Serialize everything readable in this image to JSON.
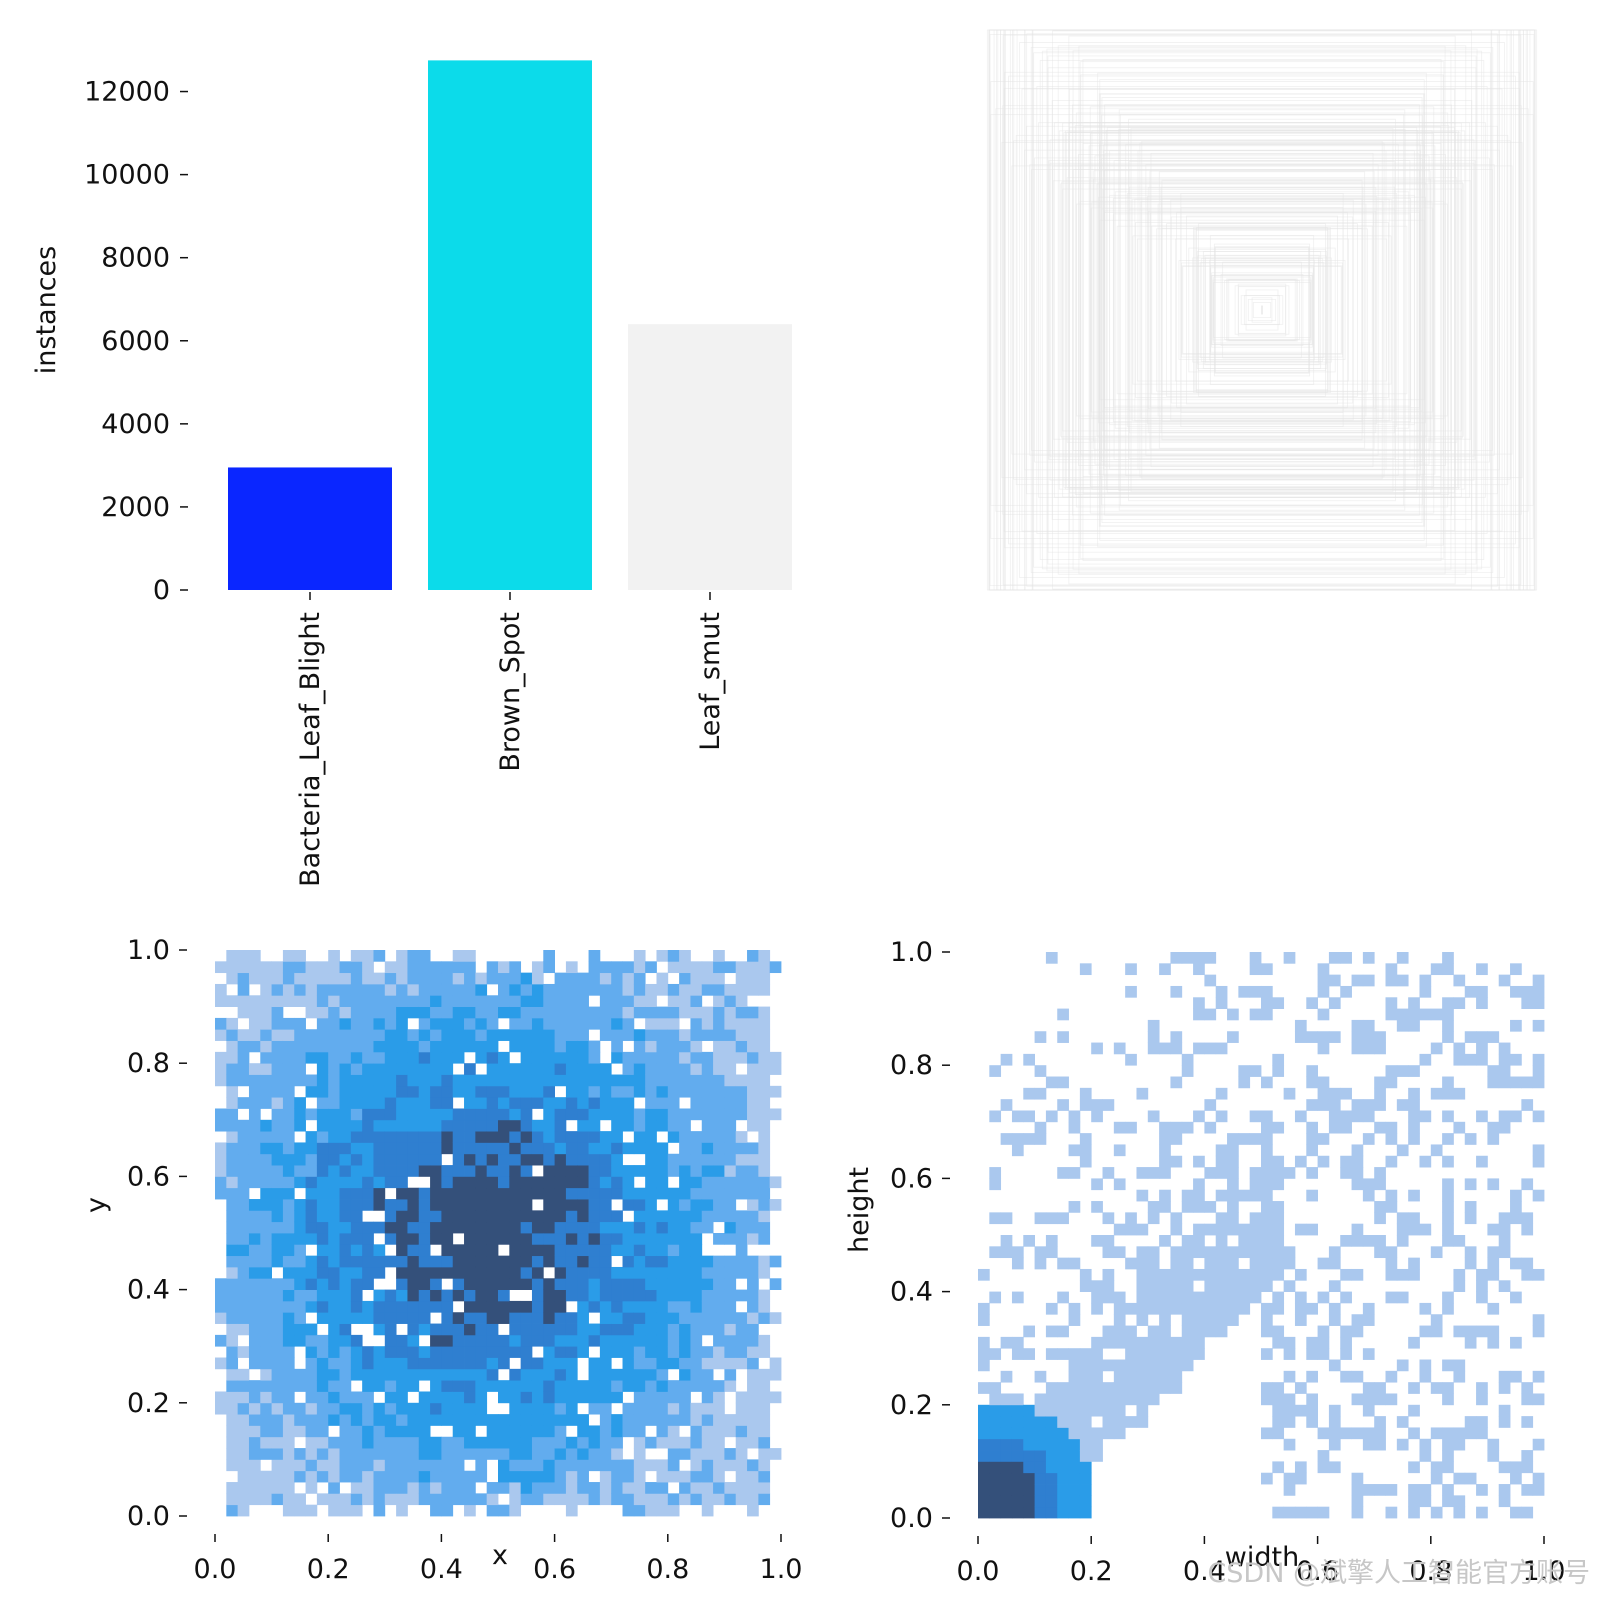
{
  "chart_data": [
    {
      "type": "bar",
      "categories": [
        "Bacteria_Leaf_Blight",
        "Brown_Spot",
        "Leaf_smut"
      ],
      "values": [
        2950,
        12750,
        6400
      ],
      "colors": [
        "#0a26ff",
        "#0cdbea",
        "#f2f2f2"
      ],
      "ylabel": "instances",
      "ylim": [
        0,
        13000
      ],
      "yticks": [
        0,
        2000,
        4000,
        6000,
        8000,
        10000,
        12000
      ],
      "grid": false
    },
    {
      "type": "other",
      "description_kind": "overlaid box outlines",
      "line_color": "#e6e6e6"
    },
    {
      "type": "heatmap",
      "xlabel": "x",
      "ylabel": "y",
      "xlim": [
        0,
        1
      ],
      "ylim": [
        0,
        1
      ],
      "xticks": [
        "0.0",
        "0.2",
        "0.4",
        "0.6",
        "0.8",
        "1.0"
      ],
      "yticks": [
        "0.0",
        "0.2",
        "0.4",
        "0.6",
        "0.8",
        "1.0"
      ],
      "bins": 50,
      "peak": [
        0.48,
        0.5
      ],
      "colors": [
        "#aac8ee",
        "#62acee",
        "#2a9ce8",
        "#2f7fd0",
        "#34507a"
      ]
    },
    {
      "type": "heatmap",
      "xlabel": "width",
      "ylabel": "height",
      "xlim": [
        0,
        1
      ],
      "ylim": [
        0,
        1
      ],
      "xticks": [
        "0.0",
        "0.2",
        "0.4",
        "0.6",
        "0.8",
        "1.0"
      ],
      "yticks": [
        "0.0",
        "0.2",
        "0.4",
        "0.6",
        "0.8",
        "1.0"
      ],
      "bins": 50,
      "peak": [
        0.04,
        0.04
      ],
      "colors": [
        "#aac8ee",
        "#62acee",
        "#2a9ce8",
        "#2f7fd0",
        "#34507a"
      ]
    }
  ],
  "watermark": "CSDN @斌擎人工智能官方账号"
}
